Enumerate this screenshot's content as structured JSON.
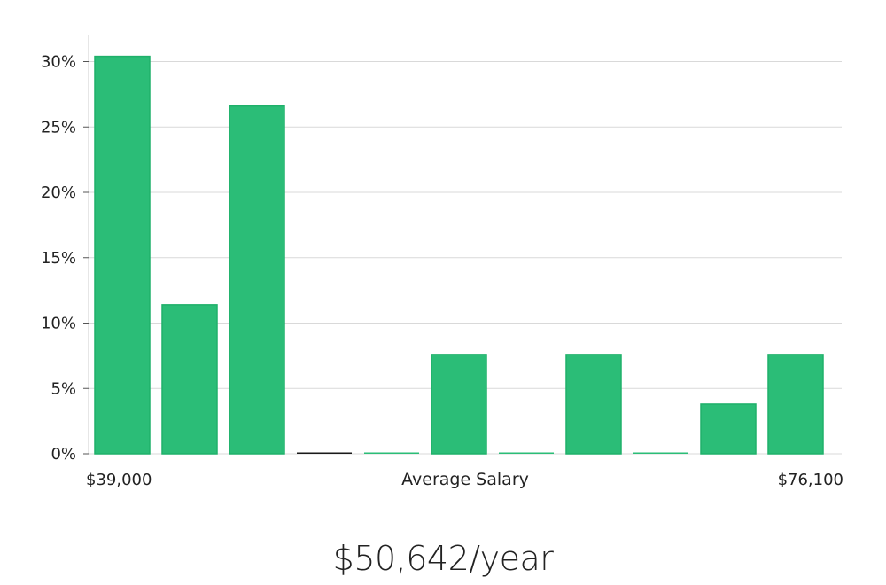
{
  "chart_data": {
    "type": "bar",
    "title": "",
    "xlabel": "Average Salary",
    "ylabel": "",
    "x_min_label": "$39,000",
    "x_max_label": "$76,100",
    "ylim": [
      0,
      32
    ],
    "yticks": [
      0,
      5,
      10,
      15,
      20,
      25,
      30
    ],
    "ytick_labels": [
      "0%",
      "5%",
      "10%",
      "15%",
      "20%",
      "25%",
      "30%"
    ],
    "values": [
      30.4,
      11.4,
      26.6,
      0,
      0,
      7.6,
      0,
      7.6,
      0,
      3.8,
      7.6
    ],
    "grid": true,
    "bar_color": "#2bbd77",
    "bar_edge_color": "#1fb06a",
    "zero_bar_color": "#1a1a1a"
  },
  "summary": {
    "average_salary": "$50,642/year"
  }
}
